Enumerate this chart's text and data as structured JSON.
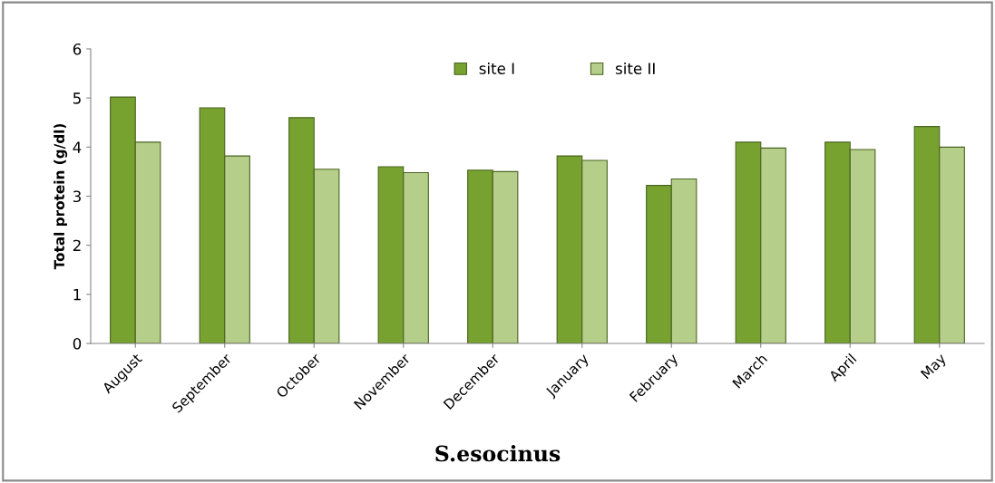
{
  "chart_data": {
    "type": "bar",
    "title": "S.esocinus",
    "ylabel": "Total protein (g/dl)",
    "categories": [
      "August",
      "September",
      "October",
      "November",
      "December",
      "January",
      "February",
      "March",
      "April",
      "May"
    ],
    "series": [
      {
        "name": "site I",
        "color": "#77a22f",
        "values": [
          5.02,
          4.8,
          4.6,
          3.6,
          3.53,
          3.82,
          3.22,
          4.1,
          4.1,
          4.42
        ]
      },
      {
        "name": "site II",
        "color": "#b5cf8a",
        "values": [
          4.1,
          3.82,
          3.55,
          3.48,
          3.5,
          3.73,
          3.35,
          3.98,
          3.95,
          4.0
        ]
      }
    ],
    "ylim": [
      0,
      6
    ],
    "yticks": [
      0,
      1,
      2,
      3,
      4,
      5,
      6
    ],
    "grid": false,
    "legend": "top"
  }
}
